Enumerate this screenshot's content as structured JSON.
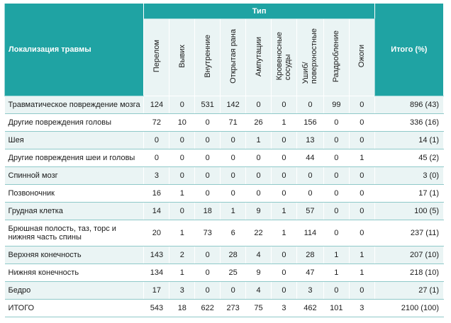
{
  "table": {
    "header_group": "Тип",
    "loc_header": "Локализация травмы",
    "total_header": "Итого (%)",
    "columns": [
      "Перелом",
      "Вывих",
      "Внутренние",
      "Открытая рана",
      "Ампутации",
      "Кровеносные\nсосуды",
      "Ушиб/\nповерхностные",
      "Раздробление",
      "Ожоги"
    ],
    "rows": [
      {
        "loc": "Травматическое повреждение мозга",
        "v": [
          "124",
          "0",
          "531",
          "142",
          "0",
          "0",
          "0",
          "99",
          "0"
        ],
        "total": "896 (43)"
      },
      {
        "loc": "Другие повреждения головы",
        "v": [
          "72",
          "10",
          "0",
          "71",
          "26",
          "1",
          "156",
          "0",
          "0"
        ],
        "total": "336 (16)"
      },
      {
        "loc": "Шея",
        "v": [
          "0",
          "0",
          "0",
          "0",
          "1",
          "0",
          "13",
          "0",
          "0"
        ],
        "total": "14 (1)"
      },
      {
        "loc": "Другие повреждения шеи и головы",
        "v": [
          "0",
          "0",
          "0",
          "0",
          "0",
          "0",
          "44",
          "0",
          "1"
        ],
        "total": "45 (2)"
      },
      {
        "loc": "Спинной мозг",
        "v": [
          "3",
          "0",
          "0",
          "0",
          "0",
          "0",
          "0",
          "0",
          "0"
        ],
        "total": "3 (0)"
      },
      {
        "loc": "Позвоночник",
        "v": [
          "16",
          "1",
          "0",
          "0",
          "0",
          "0",
          "0",
          "0",
          "0"
        ],
        "total": "17 (1)"
      },
      {
        "loc": "Грудная клетка",
        "v": [
          "14",
          "0",
          "18",
          "1",
          "9",
          "1",
          "57",
          "0",
          "0"
        ],
        "total": "100 (5)"
      },
      {
        "loc": "Брюшная полость, таз, торс и нижняя часть спины",
        "v": [
          "20",
          "1",
          "73",
          "6",
          "22",
          "1",
          "114",
          "0",
          "0"
        ],
        "total": "237 (11)"
      },
      {
        "loc": "Верхняя конечность",
        "v": [
          "143",
          "2",
          "0",
          "28",
          "4",
          "0",
          "28",
          "1",
          "1"
        ],
        "total": "207 (10)"
      },
      {
        "loc": "Нижняя конечность",
        "v": [
          "134",
          "1",
          "0",
          "25",
          "9",
          "0",
          "47",
          "1",
          "1"
        ],
        "total": "218 (10)"
      },
      {
        "loc": "Бедро",
        "v": [
          "17",
          "3",
          "0",
          "0",
          "4",
          "0",
          "3",
          "0",
          "0"
        ],
        "total": "27 (1)"
      },
      {
        "loc": "ИТОГО",
        "v": [
          "543",
          "18",
          "622",
          "273",
          "75",
          "3",
          "462",
          "101",
          "3"
        ],
        "total": "2100 (100)"
      }
    ]
  }
}
